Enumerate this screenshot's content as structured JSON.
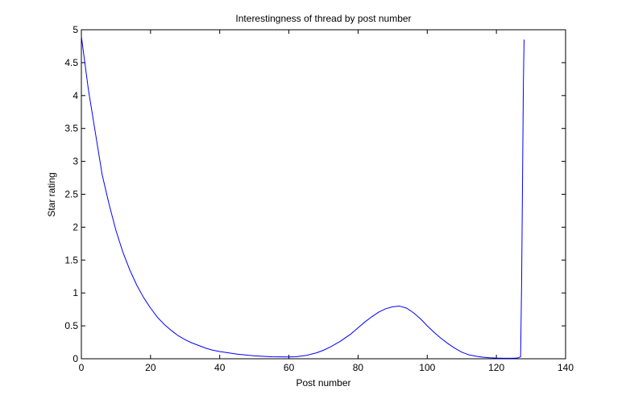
{
  "chart_data": {
    "type": "line",
    "title": "Interestingness of thread by post number",
    "xlabel": "Post number",
    "ylabel": "Star rating",
    "xlim": [
      0,
      140
    ],
    "ylim": [
      0,
      5
    ],
    "xticks": [
      0,
      20,
      40,
      60,
      80,
      100,
      120,
      140
    ],
    "xtick_labels": [
      "0",
      "20",
      "40",
      "60",
      "80",
      "100",
      "120",
      "140"
    ],
    "yticks": [
      0,
      0.5,
      1,
      1.5,
      2,
      2.5,
      3,
      3.5,
      4,
      4.5,
      5
    ],
    "ytick_labels": [
      "0",
      "0.5",
      "1",
      "1.5",
      "2",
      "2.5",
      "3",
      "3.5",
      "4",
      "4.5",
      "5"
    ],
    "grid": false,
    "series": [
      {
        "color": "#0000ff",
        "x": [
          0,
          2,
          4,
          6,
          8,
          10,
          12,
          14,
          16,
          18,
          20,
          22,
          24,
          26,
          28,
          30,
          32,
          34,
          36,
          38,
          40,
          45,
          50,
          55,
          60,
          62,
          65,
          68,
          70,
          72,
          75,
          78,
          80,
          82,
          84,
          86,
          88,
          90,
          92,
          94,
          96,
          98,
          100,
          102,
          104,
          106,
          108,
          110,
          112,
          114,
          116,
          118,
          120,
          122,
          124,
          126,
          127,
          127.3,
          127.6,
          127.8,
          128
        ],
        "y": [
          4.9,
          4.1,
          3.45,
          2.8,
          2.35,
          1.95,
          1.62,
          1.35,
          1.12,
          0.93,
          0.77,
          0.63,
          0.52,
          0.43,
          0.35,
          0.29,
          0.24,
          0.2,
          0.16,
          0.13,
          0.11,
          0.07,
          0.045,
          0.03,
          0.028,
          0.03,
          0.05,
          0.09,
          0.13,
          0.18,
          0.27,
          0.38,
          0.47,
          0.56,
          0.64,
          0.71,
          0.76,
          0.79,
          0.8,
          0.77,
          0.7,
          0.61,
          0.5,
          0.4,
          0.31,
          0.23,
          0.16,
          0.1,
          0.06,
          0.04,
          0.025,
          0.015,
          0.01,
          0.008,
          0.007,
          0.01,
          0.03,
          1.2,
          3.0,
          4.2,
          4.85
        ]
      }
    ]
  }
}
